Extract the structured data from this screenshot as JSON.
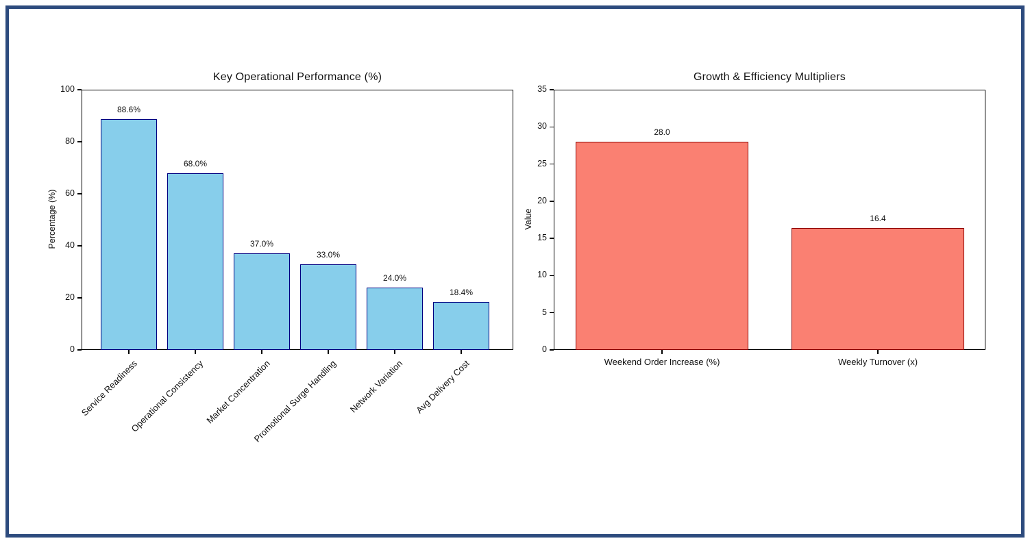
{
  "page": {
    "background_color": "#ffffff",
    "frame_border_color": "#2d4b7e"
  },
  "chart_data": [
    {
      "type": "bar",
      "title": "Key Operational Performance (%)",
      "xlabel": "",
      "ylabel": "Percentage (%)",
      "ylim": [
        0,
        100
      ],
      "yticks": [
        0,
        20,
        40,
        60,
        80,
        100
      ],
      "categories": [
        "Service Readiness",
        "Operational Consistency",
        "Market Concentration",
        "Promotional Surge Handling",
        "Network Variation",
        "Avg Delivery Cost"
      ],
      "values": [
        88.6,
        68.0,
        37.0,
        33.0,
        24.0,
        18.4
      ],
      "value_labels": [
        "88.6%",
        "68.0%",
        "37.0%",
        "33.0%",
        "24.0%",
        "18.4%"
      ],
      "bar_color": "#87CEEB",
      "bar_edge_color": "#000080",
      "grid": false,
      "legend": null,
      "x_tick_rotation_deg": 45
    },
    {
      "type": "bar",
      "title": "Growth & Efficiency Multipliers",
      "xlabel": "",
      "ylabel": "Value",
      "ylim": [
        0,
        35
      ],
      "yticks": [
        0,
        5,
        10,
        15,
        20,
        25,
        30,
        35
      ],
      "categories": [
        "Weekend Order Increase (%)",
        "Weekly Turnover (x)"
      ],
      "values": [
        28.0,
        16.4
      ],
      "value_labels": [
        "28.0",
        "16.4"
      ],
      "bar_color": "#FA8072",
      "bar_edge_color": "#8B0000",
      "grid": false,
      "legend": null,
      "x_tick_rotation_deg": 0
    }
  ]
}
